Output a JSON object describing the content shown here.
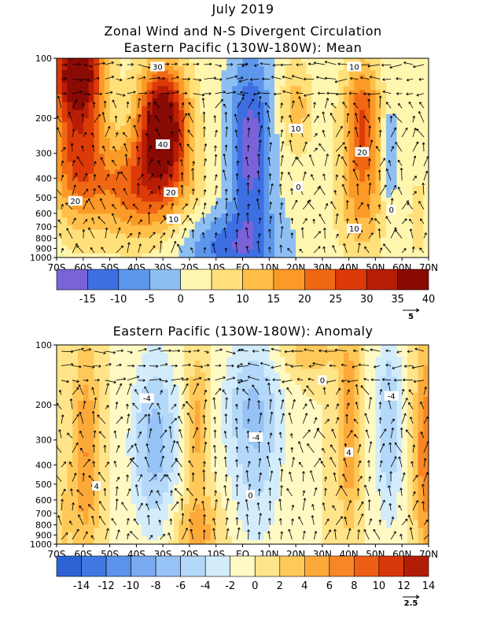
{
  "header": {
    "line1": "July 2019",
    "line2": "Zonal Wind and N-S Divergent Circulation",
    "line3": "Eastern Pacific (130W-180W): Mean"
  },
  "chart_data": [
    {
      "type": "heatmap",
      "title": "Eastern Pacific (130W-180W): Mean",
      "x_ticks": [
        "70S",
        "60S",
        "50S",
        "40S",
        "30S",
        "20S",
        "10S",
        "EQ",
        "10N",
        "20N",
        "30N",
        "40N",
        "50N",
        "60N",
        "70N"
      ],
      "y_ticks": [
        100,
        200,
        300,
        400,
        500,
        600,
        700,
        800,
        900,
        1000
      ],
      "xlim": [
        -70,
        70
      ],
      "ylim": [
        1000,
        100
      ],
      "y_scale": "log",
      "contour_labels": [
        {
          "text": "30",
          "x": -32,
          "y": 110
        },
        {
          "text": "10",
          "x": 42,
          "y": 110
        },
        {
          "text": "10",
          "x": 20,
          "y": 225
        },
        {
          "text": "40",
          "x": -30,
          "y": 270
        },
        {
          "text": "20",
          "x": 45,
          "y": 295
        },
        {
          "text": "0",
          "x": 21,
          "y": 440
        },
        {
          "text": "20",
          "x": -63,
          "y": 520
        },
        {
          "text": "20",
          "x": -27,
          "y": 470
        },
        {
          "text": "0",
          "x": 56,
          "y": 575
        },
        {
          "text": "10",
          "x": -26,
          "y": 640
        },
        {
          "text": "10",
          "x": 42,
          "y": 715
        }
      ],
      "colorbar": {
        "labels": [
          "-15",
          "-10",
          "-5",
          "0",
          "5",
          "10",
          "15",
          "20",
          "25",
          "30",
          "35",
          "40"
        ],
        "colors": [
          "#7a62d8",
          "#3e6fe2",
          "#5c97ec",
          "#8ebff3",
          "#fff6b0",
          "#ffe07a",
          "#ffbf4a",
          "#fb9a26",
          "#f06814",
          "#dc3a08",
          "#b81d06",
          "#8a0a04"
        ]
      },
      "reference_vector": "5"
    },
    {
      "type": "heatmap",
      "title": "Eastern Pacific (130W-180W): Anomaly",
      "x_ticks": [
        "70S",
        "60S",
        "50S",
        "40S",
        "30S",
        "20S",
        "10S",
        "EQ",
        "10N",
        "20N",
        "30N",
        "40N",
        "50N",
        "60N",
        "70N"
      ],
      "y_ticks": [
        100,
        200,
        300,
        400,
        500,
        600,
        700,
        800,
        900,
        1000
      ],
      "xlim": [
        -70,
        70
      ],
      "ylim": [
        1000,
        100
      ],
      "y_scale": "log",
      "contour_labels": [
        {
          "text": "0",
          "x": 30,
          "y": 150
        },
        {
          "text": "-4",
          "x": -36,
          "y": 185
        },
        {
          "text": "-4",
          "x": 56,
          "y": 180
        },
        {
          "text": "-4",
          "x": 5,
          "y": 290
        },
        {
          "text": "4",
          "x": 40,
          "y": 345
        },
        {
          "text": "4",
          "x": -55,
          "y": 510
        },
        {
          "text": "0",
          "x": 3,
          "y": 565
        }
      ],
      "colorbar": {
        "labels": [
          "-14",
          "-12",
          "-10",
          "-8",
          "-6",
          "-4",
          "-2",
          "0",
          "2",
          "4",
          "6",
          "8",
          "10",
          "12",
          "14"
        ],
        "colors": [
          "#2d63d4",
          "#3f78e0",
          "#5b92ea",
          "#7aaaf0",
          "#97c2f5",
          "#b4d8f9",
          "#d2ecfb",
          "#fff9c4",
          "#ffe48a",
          "#ffc95a",
          "#fda93a",
          "#f98624",
          "#ee5e14",
          "#d8380a",
          "#b31d06"
        ]
      },
      "reference_vector": "2.5"
    }
  ]
}
